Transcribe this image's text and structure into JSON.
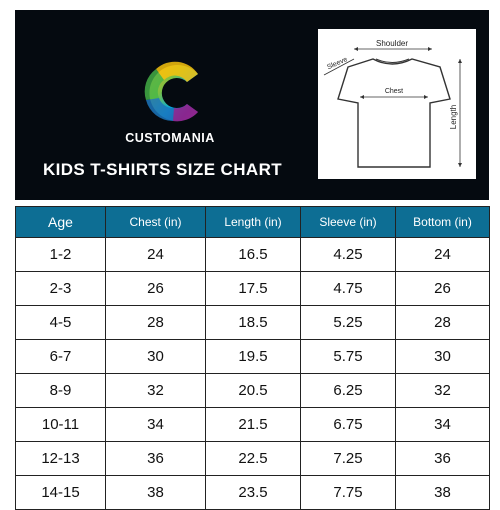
{
  "brand": {
    "name": "CUSTOMANIA",
    "logo_icon": "c-logo-icon",
    "logo_colors": [
      "#f5a623",
      "#7ac143",
      "#00a9e0",
      "#2e3192",
      "#9b2d8f",
      "#e94e1b"
    ]
  },
  "title": "KIDS T-SHIRTS SIZE CHART",
  "diagram": {
    "icon": "tshirt-outline-icon",
    "labels": {
      "shoulder": "Shoulder",
      "sleeve": "Sleeve",
      "chest": "Chest",
      "length": "Length"
    }
  },
  "table": {
    "header_color": "#0d6e94",
    "columns": [
      "Age",
      "Chest (in)",
      "Length (in)",
      "Sleeve (in)",
      "Bottom (in)"
    ],
    "rows": [
      [
        "1-2",
        "24",
        "16.5",
        "4.25",
        "24"
      ],
      [
        "2-3",
        "26",
        "17.5",
        "4.75",
        "26"
      ],
      [
        "4-5",
        "28",
        "18.5",
        "5.25",
        "28"
      ],
      [
        "6-7",
        "30",
        "19.5",
        "5.75",
        "30"
      ],
      [
        "8-9",
        "32",
        "20.5",
        "6.25",
        "32"
      ],
      [
        "10-11",
        "34",
        "21.5",
        "6.75",
        "34"
      ],
      [
        "12-13",
        "36",
        "22.5",
        "7.25",
        "36"
      ],
      [
        "14-15",
        "38",
        "23.5",
        "7.75",
        "38"
      ]
    ]
  }
}
